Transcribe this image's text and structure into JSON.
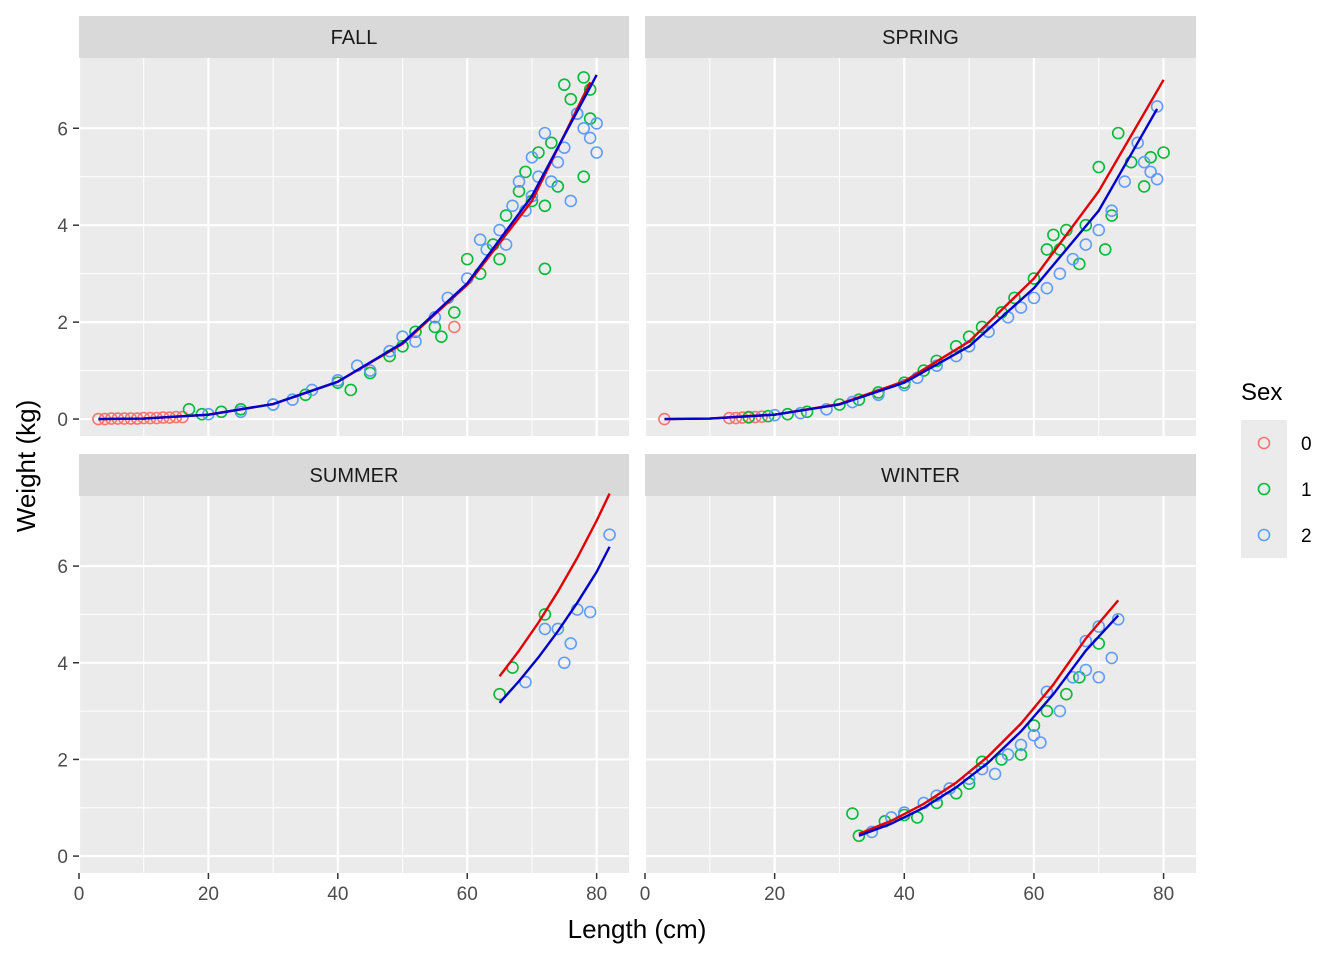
{
  "chart_data": {
    "type": "scatter",
    "xlabel": "Length (cm)",
    "ylabel": "Weight (kg)",
    "xlim": [
      0,
      85
    ],
    "ylim": [
      -0.35,
      7.45
    ],
    "x_ticks": [
      0,
      20,
      40,
      60,
      80
    ],
    "y_ticks": [
      0,
      2,
      4,
      6
    ],
    "grid": true,
    "facet_layout": "2x2",
    "legend": {
      "title": "Sex",
      "position": "right",
      "entries": [
        {
          "label": "0",
          "color": "#F8766D"
        },
        {
          "label": "1",
          "color": "#00BA38"
        },
        {
          "label": "2",
          "color": "#619CFF"
        }
      ]
    },
    "fit_line_colors": [
      "#E00000",
      "#0000CC"
    ],
    "facets": [
      {
        "label": "FALL",
        "fit_lines": [
          {
            "color": "#E00000",
            "x": [
              3,
              10,
              20,
              30,
              40,
              50,
              60,
              70,
              79
            ],
            "y": [
              0.0,
              0.01,
              0.09,
              0.31,
              0.77,
              1.55,
              2.77,
              4.5,
              6.95
            ]
          },
          {
            "color": "#0000CC",
            "x": [
              3,
              10,
              20,
              30,
              40,
              50,
              60,
              70,
              80
            ],
            "y": [
              0.0,
              0.01,
              0.09,
              0.31,
              0.77,
              1.57,
              2.8,
              4.6,
              7.1
            ]
          }
        ],
        "points": {
          "0": [
            [
              3,
              0.0
            ],
            [
              4,
              0.0
            ],
            [
              5,
              0.01
            ],
            [
              6,
              0.01
            ],
            [
              7,
              0.01
            ],
            [
              8,
              0.01
            ],
            [
              9,
              0.01
            ],
            [
              10,
              0.02
            ],
            [
              11,
              0.02
            ],
            [
              12,
              0.02
            ],
            [
              13,
              0.03
            ],
            [
              14,
              0.03
            ],
            [
              15,
              0.04
            ],
            [
              16,
              0.04
            ],
            [
              58,
              1.9
            ]
          ],
          "1": [
            [
              17,
              0.2
            ],
            [
              19,
              0.1
            ],
            [
              22,
              0.15
            ],
            [
              25,
              0.2
            ],
            [
              30,
              0.3
            ],
            [
              35,
              0.5
            ],
            [
              40,
              0.75
            ],
            [
              42,
              0.6
            ],
            [
              45,
              0.95
            ],
            [
              48,
              1.3
            ],
            [
              50,
              1.5
            ],
            [
              52,
              1.8
            ],
            [
              55,
              1.9
            ],
            [
              56,
              1.7
            ],
            [
              58,
              2.2
            ],
            [
              60,
              3.3
            ],
            [
              62,
              3.0
            ],
            [
              64,
              3.6
            ],
            [
              65,
              3.3
            ],
            [
              66,
              4.2
            ],
            [
              68,
              4.7
            ],
            [
              69,
              5.1
            ],
            [
              70,
              4.5
            ],
            [
              71,
              5.5
            ],
            [
              72,
              4.4
            ],
            [
              72,
              3.1
            ],
            [
              73,
              5.7
            ],
            [
              74,
              4.8
            ],
            [
              75,
              6.9
            ],
            [
              76,
              6.6
            ],
            [
              77,
              6.3
            ],
            [
              78,
              7.05
            ],
            [
              78,
              5.0
            ],
            [
              79,
              6.2
            ],
            [
              79,
              6.8
            ]
          ],
          "2": [
            [
              20,
              0.1
            ],
            [
              25,
              0.15
            ],
            [
              30,
              0.3
            ],
            [
              33,
              0.4
            ],
            [
              36,
              0.6
            ],
            [
              40,
              0.8
            ],
            [
              43,
              1.1
            ],
            [
              45,
              1.0
            ],
            [
              48,
              1.4
            ],
            [
              50,
              1.7
            ],
            [
              52,
              1.6
            ],
            [
              55,
              2.1
            ],
            [
              57,
              2.5
            ],
            [
              60,
              2.9
            ],
            [
              62,
              3.7
            ],
            [
              63,
              3.5
            ],
            [
              65,
              3.9
            ],
            [
              66,
              3.6
            ],
            [
              67,
              4.4
            ],
            [
              68,
              4.9
            ],
            [
              69,
              4.3
            ],
            [
              70,
              5.4
            ],
            [
              70,
              4.6
            ],
            [
              71,
              5.0
            ],
            [
              72,
              5.9
            ],
            [
              73,
              4.9
            ],
            [
              74,
              5.3
            ],
            [
              75,
              5.6
            ],
            [
              76,
              4.5
            ],
            [
              77,
              6.3
            ],
            [
              78,
              6.0
            ],
            [
              79,
              5.8
            ],
            [
              80,
              6.1
            ],
            [
              80,
              5.5
            ]
          ]
        }
      },
      {
        "label": "SPRING",
        "fit_lines": [
          {
            "color": "#E00000",
            "x": [
              3,
              10,
              20,
              30,
              40,
              50,
              60,
              70,
              80
            ],
            "y": [
              0.0,
              0.01,
              0.09,
              0.31,
              0.78,
              1.6,
              2.9,
              4.7,
              7.0
            ]
          },
          {
            "color": "#0000CC",
            "x": [
              3,
              10,
              20,
              30,
              40,
              50,
              60,
              70,
              79
            ],
            "y": [
              0.0,
              0.01,
              0.09,
              0.3,
              0.75,
              1.5,
              2.7,
              4.3,
              6.4
            ]
          }
        ],
        "points": {
          "0": [
            [
              3,
              0.0
            ],
            [
              13,
              0.02
            ],
            [
              14,
              0.02
            ],
            [
              15,
              0.03
            ],
            [
              16,
              0.03
            ],
            [
              17,
              0.04
            ],
            [
              18,
              0.05
            ]
          ],
          "1": [
            [
              16,
              0.04
            ],
            [
              19,
              0.06
            ],
            [
              22,
              0.1
            ],
            [
              25,
              0.15
            ],
            [
              30,
              0.3
            ],
            [
              33,
              0.4
            ],
            [
              36,
              0.55
            ],
            [
              40,
              0.75
            ],
            [
              43,
              1.0
            ],
            [
              45,
              1.2
            ],
            [
              48,
              1.5
            ],
            [
              50,
              1.7
            ],
            [
              52,
              1.9
            ],
            [
              55,
              2.2
            ],
            [
              57,
              2.5
            ],
            [
              60,
              2.9
            ],
            [
              62,
              3.5
            ],
            [
              63,
              3.8
            ],
            [
              64,
              3.5
            ],
            [
              65,
              3.9
            ],
            [
              67,
              3.2
            ],
            [
              68,
              4.0
            ],
            [
              70,
              5.2
            ],
            [
              71,
              3.5
            ],
            [
              72,
              4.2
            ],
            [
              73,
              5.9
            ],
            [
              75,
              5.3
            ],
            [
              77,
              4.8
            ],
            [
              78,
              5.4
            ],
            [
              80,
              5.5
            ]
          ],
          "2": [
            [
              20,
              0.08
            ],
            [
              24,
              0.12
            ],
            [
              28,
              0.2
            ],
            [
              32,
              0.35
            ],
            [
              36,
              0.5
            ],
            [
              40,
              0.7
            ],
            [
              42,
              0.85
            ],
            [
              45,
              1.1
            ],
            [
              48,
              1.3
            ],
            [
              50,
              1.5
            ],
            [
              53,
              1.8
            ],
            [
              56,
              2.1
            ],
            [
              58,
              2.3
            ],
            [
              60,
              2.5
            ],
            [
              62,
              2.7
            ],
            [
              64,
              3.0
            ],
            [
              66,
              3.3
            ],
            [
              68,
              3.6
            ],
            [
              70,
              3.9
            ],
            [
              72,
              4.3
            ],
            [
              74,
              4.9
            ],
            [
              76,
              5.7
            ],
            [
              77,
              5.3
            ],
            [
              78,
              5.1
            ],
            [
              79,
              4.95
            ],
            [
              79,
              6.45
            ]
          ]
        }
      },
      {
        "label": "SUMMER",
        "fit_lines": [
          {
            "color": "#E00000",
            "x": [
              65,
              68,
              71,
              74,
              77,
              80,
              82
            ],
            "y": [
              3.72,
              4.25,
              4.83,
              5.47,
              6.17,
              6.94,
              7.5
            ]
          },
          {
            "color": "#0000CC",
            "x": [
              65,
              68,
              71,
              74,
              77,
              80,
              82
            ],
            "y": [
              3.17,
              3.62,
              4.11,
              4.65,
              5.24,
              5.88,
              6.4
            ]
          }
        ],
        "points": {
          "0": [],
          "1": [
            [
              65,
              3.35
            ],
            [
              67,
              3.9
            ],
            [
              72,
              5.0
            ]
          ],
          "2": [
            [
              69,
              3.6
            ],
            [
              72,
              4.7
            ],
            [
              74,
              4.7
            ],
            [
              75,
              4.0
            ],
            [
              76,
              4.4
            ],
            [
              77,
              5.1
            ],
            [
              79,
              5.05
            ],
            [
              82,
              6.65
            ]
          ]
        }
      },
      {
        "label": "WINTER",
        "fit_lines": [
          {
            "color": "#E00000",
            "x": [
              33,
              38,
              43,
              48,
              53,
              58,
              63,
              68,
              73
            ],
            "y": [
              0.46,
              0.73,
              1.08,
              1.52,
              2.07,
              2.74,
              3.55,
              4.5,
              5.29
            ]
          },
          {
            "color": "#0000CC",
            "x": [
              33,
              38,
              43,
              48,
              53,
              58,
              63,
              68,
              73
            ],
            "y": [
              0.42,
              0.67,
              1.0,
              1.42,
              1.94,
              2.58,
              3.35,
              4.25,
              4.98
            ]
          }
        ],
        "points": {
          "0": [],
          "1": [
            [
              32,
              0.88
            ],
            [
              33,
              0.42
            ],
            [
              37,
              0.72
            ],
            [
              40,
              0.85
            ],
            [
              42,
              0.8
            ],
            [
              45,
              1.1
            ],
            [
              48,
              1.3
            ],
            [
              50,
              1.5
            ],
            [
              52,
              1.95
            ],
            [
              55,
              2.0
            ],
            [
              58,
              2.1
            ],
            [
              60,
              2.7
            ],
            [
              62,
              3.0
            ],
            [
              65,
              3.35
            ],
            [
              67,
              3.7
            ],
            [
              70,
              4.4
            ]
          ],
          "2": [
            [
              35,
              0.5
            ],
            [
              38,
              0.8
            ],
            [
              40,
              0.9
            ],
            [
              43,
              1.1
            ],
            [
              45,
              1.25
            ],
            [
              47,
              1.4
            ],
            [
              50,
              1.6
            ],
            [
              52,
              1.8
            ],
            [
              54,
              1.7
            ],
            [
              56,
              2.1
            ],
            [
              58,
              2.3
            ],
            [
              60,
              2.5
            ],
            [
              61,
              2.35
            ],
            [
              62,
              3.4
            ],
            [
              64,
              3.0
            ],
            [
              66,
              3.7
            ],
            [
              68,
              4.45
            ],
            [
              68,
              3.85
            ],
            [
              70,
              4.75
            ],
            [
              70,
              3.7
            ],
            [
              72,
              4.1
            ],
            [
              73,
              4.9
            ]
          ]
        }
      }
    ]
  }
}
